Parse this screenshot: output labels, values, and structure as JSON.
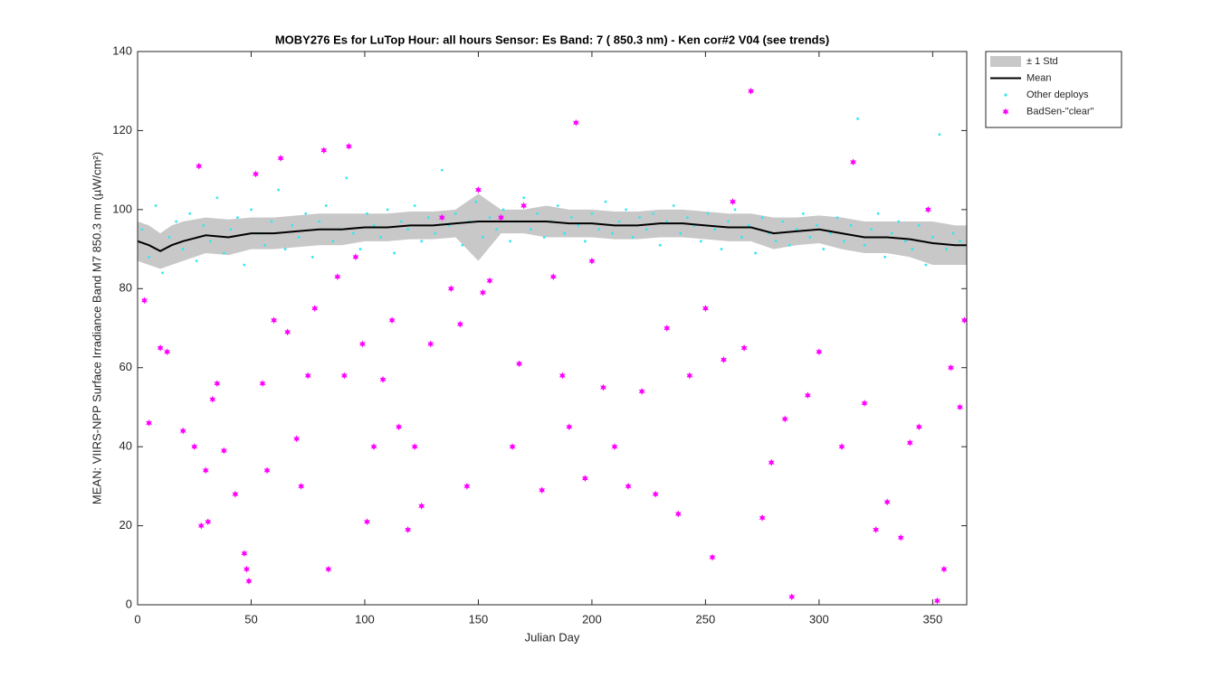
{
  "chart_data": {
    "type": "scatter",
    "title": "MOBY276   Es for LuTop  Hour: all hours  Sensor: Es Band: 7 ( 850.3 nm)  - Ken cor#2 V04 (see trends)",
    "xlabel": "Julian Day",
    "ylabel": "MEAN: VIIRS-NPP Surface Irradiance Band M7 850.3 nm (µW/cm²)",
    "xlim": [
      0,
      365
    ],
    "xticks": [
      0,
      50,
      100,
      150,
      200,
      250,
      300,
      350
    ],
    "ylim": [
      0,
      140
    ],
    "yticks": [
      0,
      20,
      40,
      60,
      80,
      100,
      120,
      140
    ],
    "grid": false,
    "legend": "northeastoutside",
    "series": [
      {
        "name": "± 1 Std",
        "color": "#c8c8c8",
        "x": [
          0,
          5,
          10,
          15,
          20,
          30,
          40,
          50,
          60,
          70,
          80,
          90,
          100,
          110,
          120,
          130,
          140,
          150,
          160,
          170,
          180,
          190,
          200,
          210,
          220,
          230,
          240,
          250,
          260,
          270,
          280,
          290,
          300,
          310,
          320,
          330,
          340,
          350,
          360,
          365
        ],
        "upper": [
          97,
          96,
          94,
          96,
          97,
          98,
          97.5,
          98,
          98,
          98.5,
          99,
          99,
          99,
          99,
          99.5,
          99.5,
          100,
          104,
          100,
          100,
          101,
          100,
          100,
          99.5,
          99.5,
          100,
          100,
          99.5,
          99,
          99,
          98,
          98,
          98.5,
          98,
          97,
          97,
          97,
          97,
          96,
          96
        ],
        "lower": [
          87,
          86,
          85,
          86,
          87,
          89,
          88.5,
          90,
          90,
          90.5,
          91,
          91,
          92,
          92,
          92.5,
          92.5,
          93,
          87,
          94,
          94,
          93,
          93,
          93,
          92.5,
          92.5,
          93,
          93,
          92.5,
          92,
          92,
          90,
          91,
          91.5,
          90,
          89,
          89,
          88,
          86,
          86,
          86
        ]
      },
      {
        "name": "Mean",
        "color": "#000000",
        "x": [
          0,
          5,
          10,
          15,
          20,
          30,
          40,
          50,
          60,
          70,
          80,
          90,
          100,
          110,
          120,
          130,
          140,
          150,
          160,
          170,
          180,
          190,
          200,
          210,
          220,
          230,
          240,
          250,
          260,
          270,
          280,
          290,
          300,
          310,
          320,
          330,
          340,
          350,
          360,
          365
        ],
        "values": [
          92,
          91,
          89.5,
          91,
          92,
          93.5,
          93,
          94,
          94,
          94.5,
          95,
          95,
          95.5,
          95.5,
          96,
          96,
          96.5,
          97,
          97,
          97,
          97,
          96.5,
          96.5,
          96,
          96,
          96.5,
          96.5,
          96,
          95.5,
          95.5,
          94,
          94.5,
          95,
          94,
          93,
          93,
          92.5,
          91.5,
          91,
          91
        ]
      },
      {
        "name": "Other deploys",
        "color": "#33e8f0",
        "x": [
          2,
          5,
          8,
          11,
          14,
          17,
          20,
          23,
          26,
          29,
          32,
          35,
          38,
          41,
          44,
          47,
          50,
          53,
          56,
          59,
          62,
          65,
          68,
          71,
          74,
          77,
          80,
          83,
          86,
          89,
          92,
          95,
          98,
          101,
          104,
          107,
          110,
          113,
          116,
          119,
          122,
          125,
          128,
          131,
          134,
          137,
          140,
          143,
          146,
          149,
          152,
          155,
          158,
          161,
          164,
          167,
          170,
          173,
          176,
          179,
          182,
          185,
          188,
          191,
          194,
          197,
          200,
          203,
          206,
          209,
          212,
          215,
          218,
          221,
          224,
          227,
          230,
          233,
          236,
          239,
          242,
          245,
          248,
          251,
          254,
          257,
          260,
          263,
          266,
          269,
          272,
          275,
          278,
          281,
          284,
          287,
          290,
          293,
          296,
          299,
          302,
          305,
          308,
          311,
          314,
          317,
          320,
          323,
          326,
          329,
          332,
          335,
          338,
          341,
          344,
          347,
          350,
          353,
          356,
          359,
          362
        ],
        "values": [
          95,
          88,
          101,
          84,
          93,
          97,
          90,
          99,
          87,
          96,
          92,
          103,
          89,
          95,
          98,
          86,
          100,
          94,
          91,
          97,
          105,
          90,
          96,
          93,
          99,
          88,
          97,
          101,
          92,
          95,
          108,
          94,
          90,
          99,
          96,
          93,
          100,
          89,
          97,
          95,
          101,
          92,
          98,
          94,
          110,
          96,
          99,
          91,
          97,
          102,
          93,
          98,
          95,
          100,
          92,
          97,
          103,
          95,
          99,
          93,
          97,
          101,
          94,
          98,
          96,
          92,
          99,
          95,
          102,
          94,
          97,
          100,
          93,
          98,
          95,
          99,
          91,
          97,
          101,
          94,
          98,
          96,
          92,
          99,
          95,
          90,
          97,
          100,
          93,
          96,
          89,
          98,
          94,
          92,
          97,
          91,
          95,
          99,
          93,
          96,
          90,
          94,
          98,
          92,
          96,
          123,
          91,
          95,
          99,
          88,
          94,
          97,
          92,
          90,
          96,
          86,
          93,
          119,
          90,
          94,
          92
        ]
      },
      {
        "name": "BadSen-\"clear\"",
        "color": "#ff00ff",
        "x": [
          3,
          5,
          10,
          13,
          20,
          25,
          27,
          28,
          30,
          31,
          33,
          35,
          38,
          43,
          47,
          48,
          49,
          52,
          55,
          57,
          60,
          63,
          66,
          70,
          72,
          75,
          78,
          82,
          84,
          88,
          91,
          93,
          96,
          99,
          101,
          104,
          108,
          112,
          115,
          119,
          122,
          125,
          129,
          134,
          138,
          142,
          145,
          150,
          152,
          155,
          160,
          165,
          168,
          170,
          178,
          183,
          187,
          190,
          193,
          197,
          200,
          205,
          210,
          216,
          222,
          228,
          233,
          238,
          243,
          250,
          253,
          258,
          262,
          267,
          270,
          275,
          279,
          285,
          288,
          295,
          300,
          310,
          315,
          320,
          325,
          330,
          336,
          340,
          344,
          348,
          352,
          355,
          358,
          362,
          364
        ],
        "values": [
          77,
          46,
          65,
          64,
          44,
          40,
          111,
          20,
          34,
          21,
          52,
          56,
          39,
          28,
          13,
          9,
          6,
          109,
          56,
          34,
          72,
          113,
          69,
          42,
          30,
          58,
          75,
          115,
          9,
          83,
          58,
          116,
          88,
          66,
          21,
          40,
          57,
          72,
          45,
          19,
          40,
          25,
          66,
          98,
          80,
          71,
          30,
          105,
          79,
          82,
          98,
          40,
          61,
          101,
          29,
          83,
          58,
          45,
          122,
          32,
          87,
          55,
          40,
          30,
          54,
          28,
          70,
          23,
          58,
          75,
          12,
          62,
          102,
          65,
          130,
          22,
          36,
          47,
          2,
          53,
          64,
          40,
          112,
          51,
          19,
          26,
          17,
          41,
          45,
          100,
          1,
          9,
          60,
          50,
          72
        ]
      }
    ]
  }
}
